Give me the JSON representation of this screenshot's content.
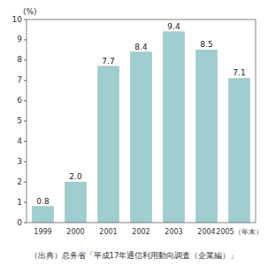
{
  "chart_data": {
    "type": "bar",
    "categories": [
      "1999",
      "2000",
      "2001",
      "2002",
      "2003",
      "2004",
      "2005（年末）"
    ],
    "values": [
      0.8,
      2.0,
      7.7,
      8.4,
      9.4,
      8.5,
      7.1
    ],
    "value_labels": [
      "0.8",
      "2.0",
      "7.7",
      "8.4",
      "9.4",
      "8.5",
      "7.1"
    ],
    "data_labels": true,
    "color": "#9ecece",
    "ylabel": "(%)",
    "caption": "（出典）总务省「平成17年通信利用動向調査（企業編）」",
    "ylim": [
      0,
      10
    ],
    "yticks": [
      0,
      1,
      2,
      3,
      4,
      5,
      6,
      7,
      8,
      9,
      10
    ]
  }
}
